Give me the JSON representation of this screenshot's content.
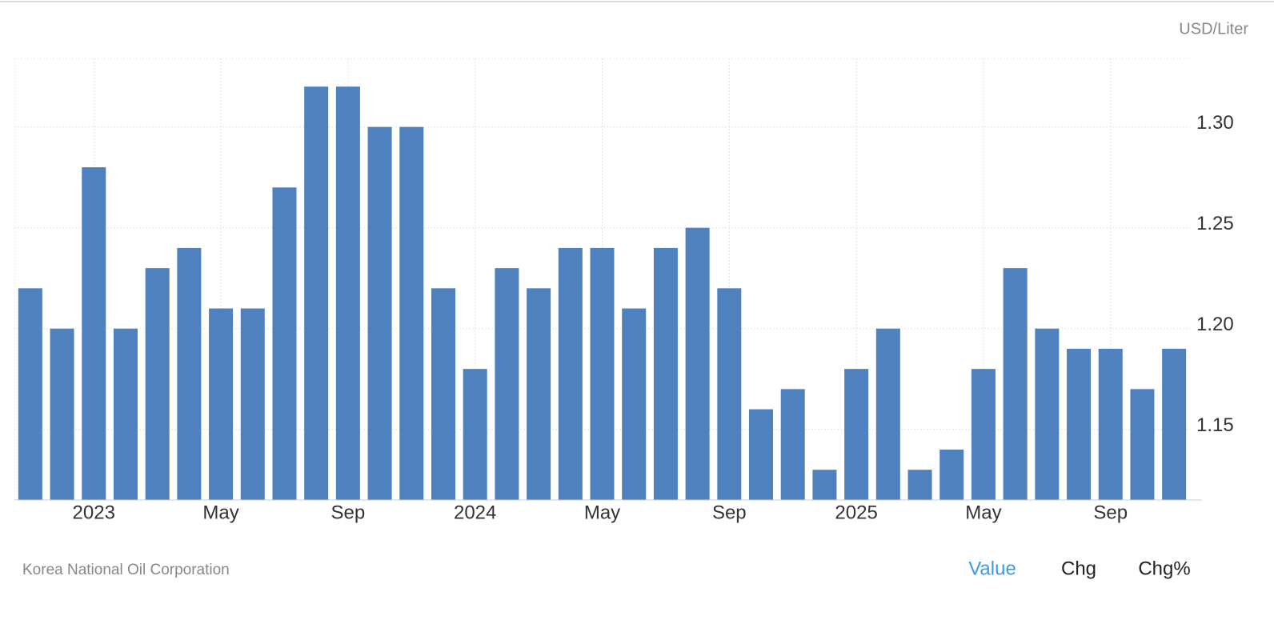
{
  "chart_data": {
    "type": "bar",
    "unit_label": "USD/Liter",
    "source": "Korea National Oil Corporation",
    "buttons": [
      "Value",
      "Chg",
      "Chg%"
    ],
    "active_button": 0,
    "color": "#4e81bd",
    "categories": [
      null,
      null,
      "2023",
      null,
      null,
      null,
      "May",
      null,
      null,
      null,
      "Sep",
      null,
      null,
      null,
      "2024",
      null,
      null,
      null,
      "May",
      null,
      null,
      null,
      "Sep",
      null,
      null,
      null,
      "2025",
      null,
      null,
      null,
      "May",
      null,
      null,
      null,
      "Sep",
      null,
      null
    ],
    "values": [
      1.22,
      1.2,
      1.28,
      1.2,
      1.23,
      1.24,
      1.21,
      1.21,
      1.27,
      1.32,
      1.32,
      1.3,
      1.3,
      1.22,
      1.18,
      1.23,
      1.22,
      1.24,
      1.24,
      1.21,
      1.24,
      1.25,
      1.22,
      1.16,
      1.17,
      1.13,
      1.18,
      1.2,
      1.13,
      1.14,
      1.18,
      1.23,
      1.2,
      1.19,
      1.19,
      1.17,
      1.19
    ],
    "ylim": [
      1.115,
      1.334
    ],
    "yticks": [
      {
        "value": 1.15,
        "label": "1.15"
      },
      {
        "value": 1.2,
        "label": "1.20"
      },
      {
        "value": 1.25,
        "label": "1.25"
      },
      {
        "value": 1.3,
        "label": "1.30"
      }
    ],
    "grid": true
  }
}
